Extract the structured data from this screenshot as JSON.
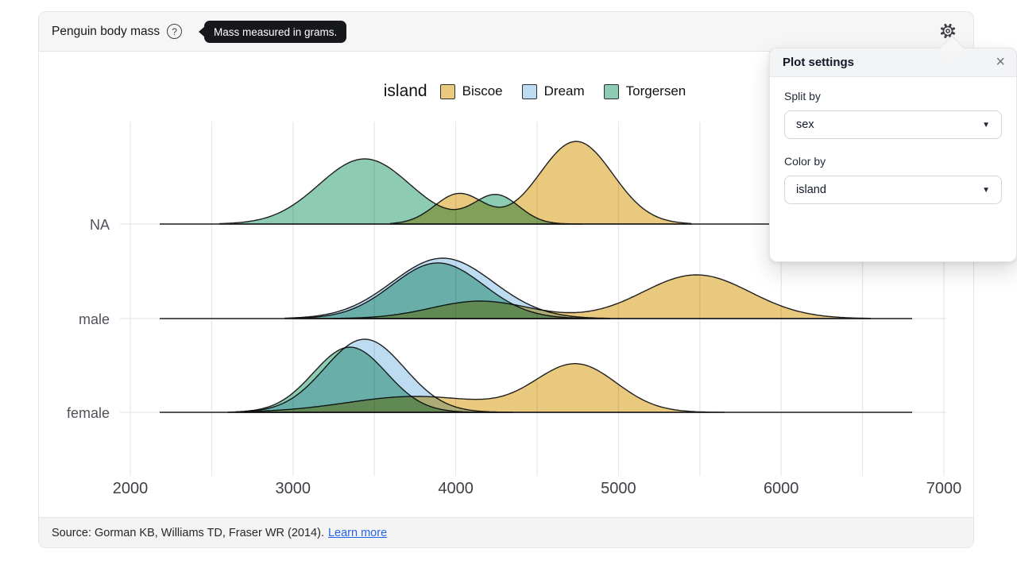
{
  "header": {
    "title": "Penguin body mass",
    "help_icon": "help-circle-icon",
    "help_glyph": "?",
    "tooltip_text": "Mass measured in grams.",
    "settings_icon": "gear-icon"
  },
  "panel": {
    "title": "Plot settings",
    "close_glyph": "×",
    "caret_glyph": "▼",
    "fields": [
      {
        "label": "Split by",
        "value": "sex"
      },
      {
        "label": "Color by",
        "value": "island"
      }
    ]
  },
  "footer": {
    "source_text": "Source: Gorman KB, Williams TD, Fraser WR (2014).",
    "link_label": "Learn more"
  },
  "chart_data": {
    "type": "density-ridgeline",
    "x": {
      "domain": [
        2000,
        7000
      ],
      "ticks": [
        2000,
        3000,
        4000,
        5000,
        6000,
        7000
      ],
      "gridline_step": 500,
      "unit": "grams"
    },
    "y": {
      "categories": [
        "NA",
        "male",
        "female"
      ]
    },
    "legend": {
      "title": "island",
      "items": [
        {
          "label": "Biscoe",
          "color": "#E9C97E"
        },
        {
          "label": "Dream",
          "color": "#BDDBF1"
        },
        {
          "label": "Torgersen",
          "color": "#8DCBB3"
        }
      ]
    },
    "stroke_color": "#1f1f1f",
    "rows": [
      {
        "category": "NA",
        "series": [
          {
            "island": "Biscoe",
            "range": [
              3600,
              5450
            ],
            "components": [
              {
                "mean": 4020,
                "sd": 150,
                "peak": 38
              },
              {
                "mean": 4740,
                "sd": 225,
                "peak": 104
              }
            ]
          },
          {
            "island": "Torgersen",
            "range": [
              2550,
              4780
            ],
            "components": [
              {
                "mean": 3440,
                "sd": 280,
                "peak": 82
              },
              {
                "mean": 4250,
                "sd": 140,
                "peak": 36
              }
            ]
          }
        ]
      },
      {
        "category": "male",
        "series": [
          {
            "island": "Biscoe",
            "range": [
              3250,
              6550
            ],
            "components": [
              {
                "mean": 4150,
                "sd": 300,
                "peak": 22
              },
              {
                "mean": 5480,
                "sd": 330,
                "peak": 55
              }
            ]
          },
          {
            "island": "Dream",
            "range": [
              2950,
              4950
            ],
            "components": [
              {
                "mean": 3920,
                "sd": 310,
                "peak": 76
              }
            ]
          },
          {
            "island": "Torgersen",
            "range": [
              3000,
              4800
            ],
            "components": [
              {
                "mean": 3890,
                "sd": 280,
                "peak": 70
              }
            ]
          }
        ]
      },
      {
        "category": "female",
        "series": [
          {
            "island": "Biscoe",
            "range": [
              2700,
              5650
            ],
            "components": [
              {
                "mean": 3750,
                "sd": 420,
                "peak": 20
              },
              {
                "mean": 4740,
                "sd": 250,
                "peak": 60
              }
            ]
          },
          {
            "island": "Dream",
            "range": [
              2600,
              4350
            ],
            "components": [
              {
                "mean": 3440,
                "sd": 245,
                "peak": 92
              }
            ]
          },
          {
            "island": "Torgersen",
            "range": [
              2650,
              4250
            ],
            "components": [
              {
                "mean": 3350,
                "sd": 225,
                "peak": 82
              }
            ]
          }
        ]
      }
    ]
  }
}
